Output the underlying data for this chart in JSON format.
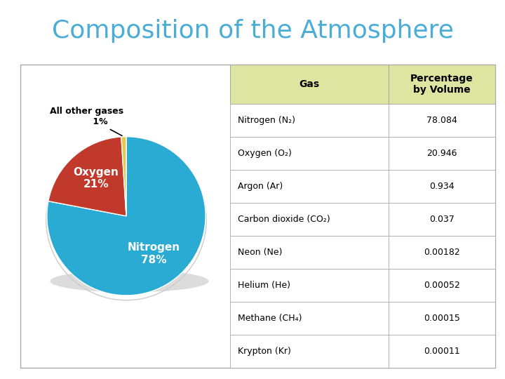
{
  "title": "Composition of the Atmosphere",
  "title_color": "#4BACD6",
  "title_fontsize": 26,
  "pie_values": [
    78,
    21,
    1
  ],
  "pie_colors": [
    "#29ABD4",
    "#C0392B",
    "#E8C84A"
  ],
  "nitrogen_label": "Nitrogen\n78%",
  "oxygen_label": "Oxygen\n21%",
  "other_label": "All other gases\n1%",
  "table_header_bg": "#DDE5A0",
  "table_col1_header": "Gas",
  "table_col2_header": "Percentage\nby Volume",
  "table_rows": [
    [
      "Nitrogen (N₂)",
      "78.084"
    ],
    [
      "Oxygen (O₂)",
      "20.946"
    ],
    [
      "Argon (Ar)",
      "0.934"
    ],
    [
      "Carbon dioxide (CO₂)",
      "0.037"
    ],
    [
      "Neon (Ne)",
      "0.00182"
    ],
    [
      "Helium (He)",
      "0.00052"
    ],
    [
      "Methane (CH₄)",
      "0.00015"
    ],
    [
      "Krypton (Kr)",
      "0.00011"
    ]
  ],
  "border_color": "#AAAAAA",
  "bg_color": "#FFFFFF",
  "fig_width": 7.2,
  "fig_height": 5.4
}
